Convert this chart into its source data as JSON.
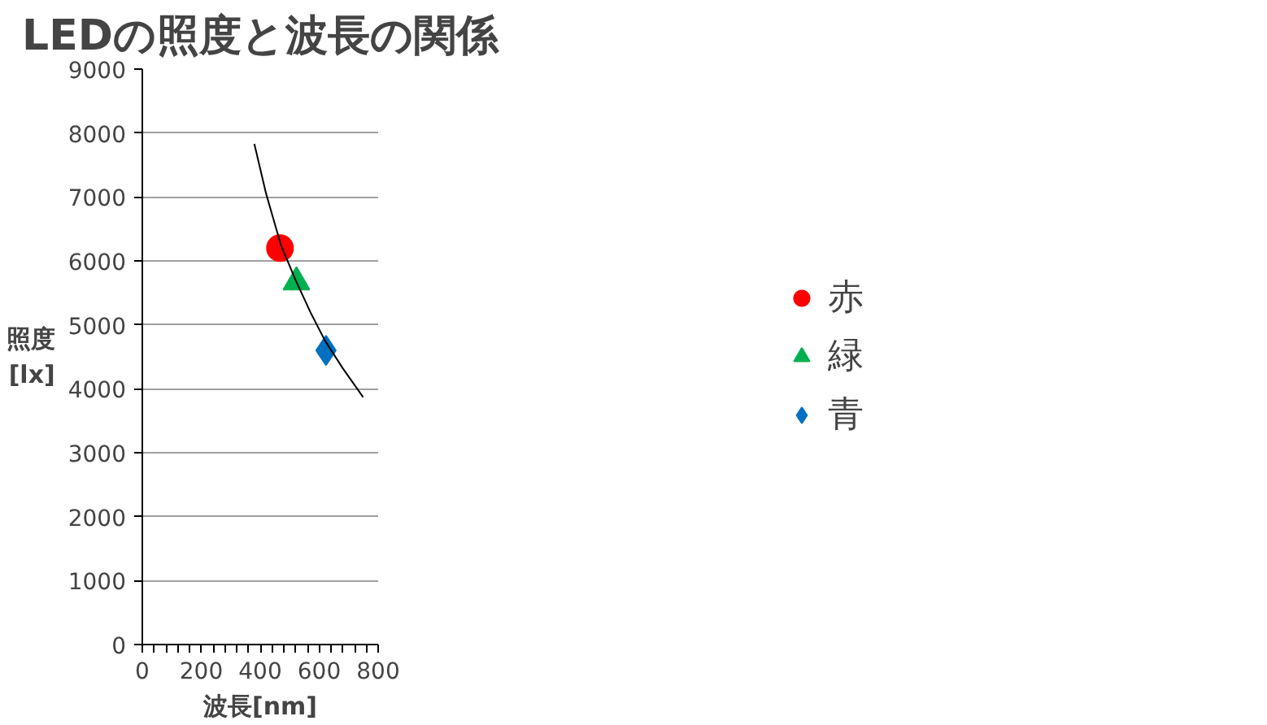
{
  "chart_data": {
    "type": "scatter",
    "title": "LEDの照度と波長の関係",
    "xlabel": "波長[nm]",
    "ylabel": "照度\n[lx]",
    "xlim": [
      0,
      800
    ],
    "xticks": [
      0,
      {
        "value": 40,
        "label": null
      },
      {
        "value": 80,
        "label": null
      },
      {
        "value": 120,
        "label": null
      },
      {
        "value": 160,
        "label": null
      },
      200,
      {
        "value": 240,
        "label": null
      },
      {
        "value": 280,
        "label": null
      },
      {
        "value": 320,
        "label": null
      },
      {
        "value": 360,
        "label": null
      },
      400,
      {
        "value": 440,
        "label": null
      },
      {
        "value": 480,
        "label": null
      },
      {
        "value": 520,
        "label": null
      },
      {
        "value": 560,
        "label": null
      },
      600,
      {
        "value": 640,
        "label": null
      },
      {
        "value": 680,
        "label": null
      },
      {
        "value": 720,
        "label": null
      },
      {
        "value": 760,
        "label": null
      },
      800
    ],
    "ylim": [
      0,
      9000
    ],
    "yticks": [
      0,
      1000,
      2000,
      3000,
      4000,
      5000,
      6000,
      7000,
      8000,
      9000
    ],
    "grid": "y",
    "legend": "right",
    "series": [
      {
        "name": "赤",
        "color": "#ff0000",
        "marker": "circle",
        "x": [
          467
        ],
        "values": [
          6200
        ]
      },
      {
        "name": "緑",
        "color": "#00b050",
        "marker": "triangle",
        "x": [
          523
        ],
        "values": [
          5670
        ]
      },
      {
        "name": "青",
        "color": "#0070c0",
        "marker": "diamond",
        "x": [
          623
        ],
        "values": [
          4600
        ]
      },
      {
        "type": "line",
        "color": "#000000",
        "marker": "none",
        "x": [
          380,
          420,
          470,
          520,
          570,
          620,
          680,
          749
        ],
        "values": [
          7830,
          7050,
          6250,
          5700,
          5200,
          4750,
          4320,
          3870
        ]
      }
    ]
  }
}
